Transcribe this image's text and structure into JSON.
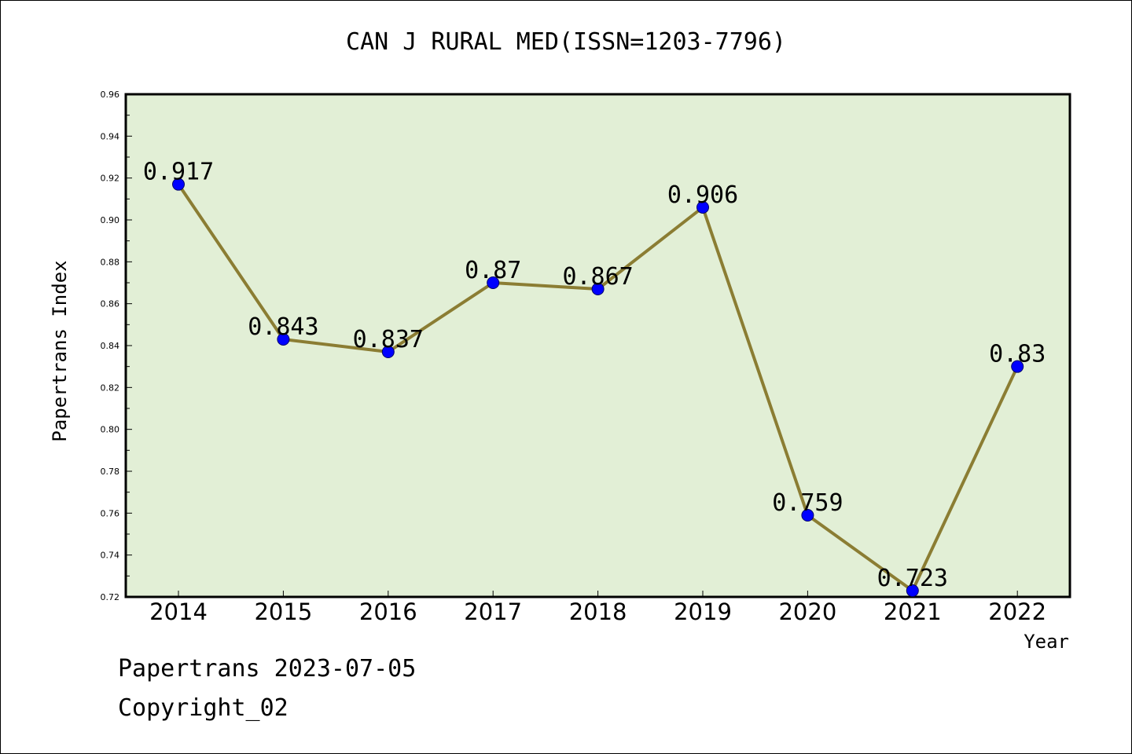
{
  "chart_data": {
    "type": "line",
    "title": "CAN J RURAL MED(ISSN=1203-7796)",
    "xlabel": "Year",
    "ylabel": "Papertrans Index",
    "categories": [
      "2014",
      "2015",
      "2016",
      "2017",
      "2018",
      "2019",
      "2020",
      "2021",
      "2022"
    ],
    "values": [
      0.917,
      0.843,
      0.837,
      0.87,
      0.867,
      0.906,
      0.759,
      0.723,
      0.83
    ],
    "data_labels": [
      "0.917",
      "0.843",
      "0.837",
      "0.87",
      "0.867",
      "0.906",
      "0.759",
      "0.723",
      "0.83"
    ],
    "ylim": [
      0.72,
      0.96
    ],
    "yticks": [
      "0.72",
      "0.74",
      "0.76",
      "0.78",
      "0.80",
      "0.82",
      "0.84",
      "0.86",
      "0.88",
      "0.90",
      "0.92",
      "0.94",
      "0.96"
    ],
    "grid": false,
    "colors": {
      "plot_background": "#e2efd6",
      "line": "#8b7d33",
      "marker": "#0000ff"
    }
  },
  "footer": {
    "date_text": "Papertrans 2023-07-05",
    "copyright_text": "Copyright_02"
  }
}
